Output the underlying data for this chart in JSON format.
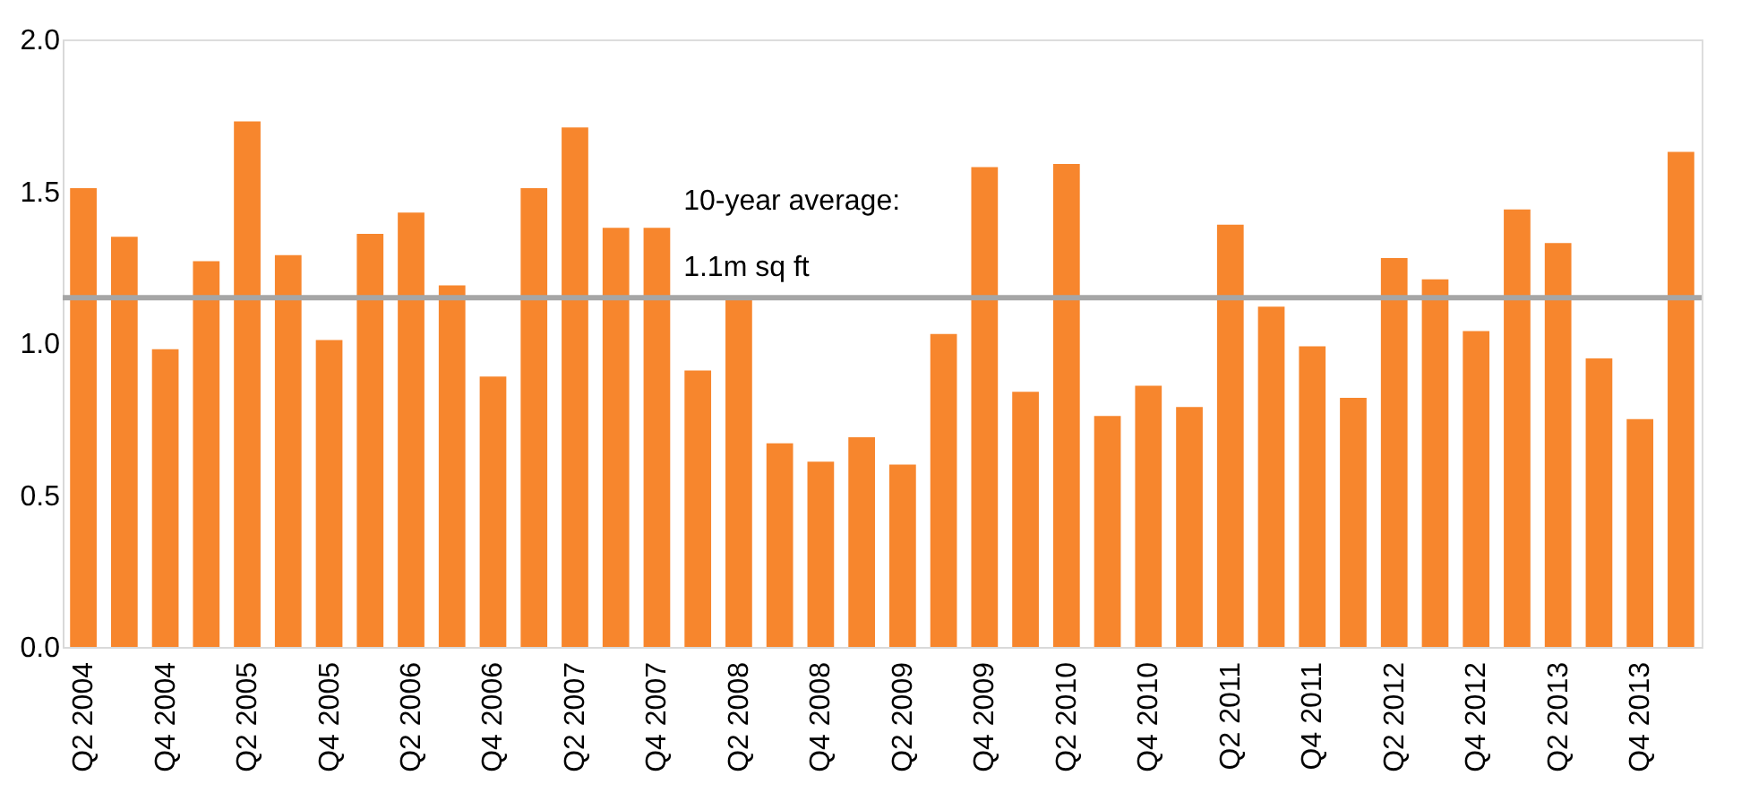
{
  "chart_data": {
    "type": "bar",
    "categories": [
      "Q2 2004",
      null,
      "Q4 2004",
      null,
      "Q2 2005",
      null,
      "Q4 2005",
      null,
      "Q2 2006",
      null,
      "Q4 2006",
      null,
      "Q2 2007",
      null,
      "Q4 2007",
      null,
      "Q2 2008",
      null,
      "Q4 2008",
      null,
      "Q2 2009",
      null,
      "Q4 2009",
      null,
      "Q2 2010",
      null,
      "Q4 2010",
      null,
      "Q2 2011",
      null,
      "Q4 2011",
      null,
      "Q2 2012",
      null,
      "Q4 2012",
      null,
      "Q2 2013",
      null,
      "Q4 2013",
      null
    ],
    "values": [
      1.51,
      1.35,
      0.98,
      1.27,
      1.73,
      1.29,
      1.01,
      1.36,
      1.43,
      1.19,
      0.89,
      1.51,
      1.71,
      1.38,
      1.38,
      0.91,
      1.15,
      0.67,
      0.61,
      0.69,
      0.6,
      1.03,
      1.58,
      0.84,
      1.59,
      0.76,
      0.86,
      0.79,
      1.39,
      1.12,
      0.99,
      0.82,
      1.28,
      1.21,
      1.04,
      1.44,
      1.33,
      0.95,
      0.75,
      1.63
    ],
    "color": "#f7862d",
    "ylim": [
      0,
      2.0
    ],
    "yticks": [
      {
        "value": 0,
        "label": "0.0"
      },
      {
        "value": 0.5,
        "label": "0.5"
      },
      {
        "value": 1,
        "label": "1.0"
      },
      {
        "value": 1.5,
        "label": "1.5"
      },
      {
        "value": 2,
        "label": "2.0"
      }
    ],
    "grid": false,
    "ref_lines": [
      {
        "axis": "y",
        "value": 1.15,
        "label": "10-year average:\n1.1m sq ft",
        "color": "#a6a6a6"
      }
    ]
  }
}
